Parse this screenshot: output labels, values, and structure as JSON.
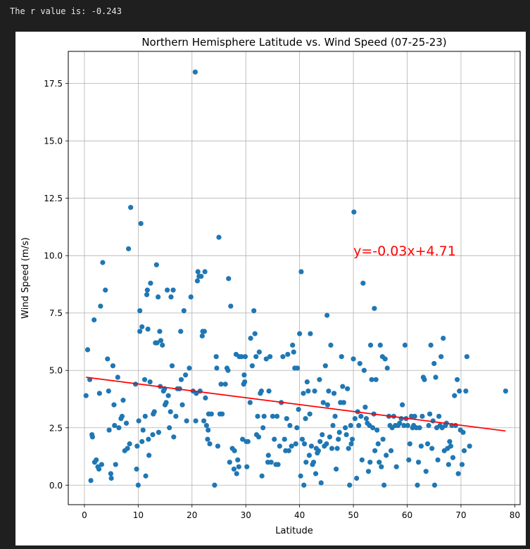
{
  "console": {
    "output_text": "The r value is: -0.243"
  },
  "colors": {
    "points": "#1f77b4",
    "regression": "#ff0000",
    "grid": "#b0b0b0",
    "background": "#1f1f1f"
  },
  "chart_data": {
    "type": "scatter",
    "title": "Northern Hemisphere Latitude vs. Wind Speed (07-25-23)",
    "xlabel": "Latitude",
    "ylabel": "Wind Speed (m/s)",
    "xlim": [
      -3,
      81
    ],
    "ylim": [
      -0.85,
      18.9
    ],
    "xticks": [
      0,
      10,
      20,
      30,
      40,
      50,
      60,
      70,
      80
    ],
    "xtick_labels": [
      "0",
      "10",
      "20",
      "30",
      "40",
      "50",
      "60",
      "70",
      "80"
    ],
    "yticks": [
      0.0,
      2.5,
      5.0,
      7.5,
      10.0,
      12.5,
      15.0,
      17.5
    ],
    "ytick_labels": [
      "0.0",
      "2.5",
      "5.0",
      "7.5",
      "10.0",
      "12.5",
      "15.0",
      "17.5"
    ],
    "grid": true,
    "annotation": {
      "text": "y=-0.03x+4.71",
      "x": 50,
      "y": 10.0
    },
    "regression": {
      "slope": -0.03,
      "intercept": 4.71,
      "x_range": [
        0.3,
        78.3
      ]
    },
    "points": [
      [
        0.3,
        3.9
      ],
      [
        0.6,
        5.9
      ],
      [
        1.0,
        4.6
      ],
      [
        1.2,
        0.2
      ],
      [
        1.4,
        2.2
      ],
      [
        1.5,
        2.1
      ],
      [
        1.8,
        7.2
      ],
      [
        1.9,
        1.0
      ],
      [
        2.2,
        1.1
      ],
      [
        2.5,
        0.8
      ],
      [
        2.7,
        0.7
      ],
      [
        2.8,
        4.0
      ],
      [
        3.0,
        7.8
      ],
      [
        3.2,
        0.9
      ],
      [
        3.4,
        9.7
      ],
      [
        3.9,
        8.5
      ],
      [
        4.3,
        5.5
      ],
      [
        4.5,
        4.1
      ],
      [
        4.6,
        2.4
      ],
      [
        4.9,
        0.5
      ],
      [
        5.0,
        0.3
      ],
      [
        5.3,
        5.2
      ],
      [
        5.5,
        3.5
      ],
      [
        5.6,
        2.6
      ],
      [
        5.8,
        0.9
      ],
      [
        6.2,
        4.7
      ],
      [
        6.4,
        2.5
      ],
      [
        6.8,
        2.9
      ],
      [
        7.0,
        3.0
      ],
      [
        7.2,
        3.7
      ],
      [
        7.5,
        1.5
      ],
      [
        7.8,
        2.7
      ],
      [
        8.0,
        1.6
      ],
      [
        8.2,
        10.3
      ],
      [
        8.4,
        1.8
      ],
      [
        8.6,
        12.1
      ],
      [
        9.5,
        4.4
      ],
      [
        9.7,
        0.7
      ],
      [
        9.8,
        1.7
      ],
      [
        10.0,
        0.0
      ],
      [
        10.1,
        2.8
      ],
      [
        10.3,
        7.6
      ],
      [
        10.3,
        6.7
      ],
      [
        10.5,
        11.4
      ],
      [
        10.7,
        6.9
      ],
      [
        10.7,
        1.9
      ],
      [
        10.9,
        2.4
      ],
      [
        11.2,
        4.6
      ],
      [
        11.3,
        3.0
      ],
      [
        11.4,
        0.4
      ],
      [
        11.6,
        8.3
      ],
      [
        11.7,
        8.5
      ],
      [
        11.8,
        6.8
      ],
      [
        11.9,
        2.0
      ],
      [
        12.0,
        1.3
      ],
      [
        12.2,
        4.5
      ],
      [
        12.3,
        8.8
      ],
      [
        12.7,
        2.2
      ],
      [
        12.8,
        3.1
      ],
      [
        13.0,
        3.2
      ],
      [
        13.2,
        6.2
      ],
      [
        13.4,
        9.6
      ],
      [
        13.5,
        6.2
      ],
      [
        13.7,
        8.2
      ],
      [
        13.8,
        2.3
      ],
      [
        14.0,
        6.7
      ],
      [
        14.1,
        4.3
      ],
      [
        14.2,
        6.3
      ],
      [
        14.5,
        6.1
      ],
      [
        14.7,
        4.1
      ],
      [
        14.9,
        4.2
      ],
      [
        15.0,
        3.5
      ],
      [
        15.2,
        3.6
      ],
      [
        15.4,
        8.5
      ],
      [
        15.6,
        3.9
      ],
      [
        15.8,
        2.5
      ],
      [
        16.0,
        3.2
      ],
      [
        16.1,
        8.2
      ],
      [
        16.3,
        5.2
      ],
      [
        16.5,
        8.5
      ],
      [
        16.6,
        2.1
      ],
      [
        17.0,
        3.0
      ],
      [
        17.3,
        4.2
      ],
      [
        17.7,
        4.2
      ],
      [
        17.9,
        6.7
      ],
      [
        18.0,
        4.6
      ],
      [
        18.2,
        3.5
      ],
      [
        18.5,
        7.6
      ],
      [
        18.8,
        4.8
      ],
      [
        19.0,
        2.8
      ],
      [
        19.5,
        5.1
      ],
      [
        19.8,
        8.2
      ],
      [
        20.2,
        4.1
      ],
      [
        20.6,
        18.0
      ],
      [
        20.7,
        2.8
      ],
      [
        20.8,
        4.0
      ],
      [
        21.0,
        8.9
      ],
      [
        21.1,
        9.3
      ],
      [
        21.3,
        9.1
      ],
      [
        21.5,
        4.1
      ],
      [
        21.7,
        9.1
      ],
      [
        21.9,
        6.5
      ],
      [
        22.0,
        6.7
      ],
      [
        22.2,
        2.8
      ],
      [
        22.3,
        6.7
      ],
      [
        22.4,
        9.3
      ],
      [
        22.5,
        3.8
      ],
      [
        22.7,
        2.6
      ],
      [
        22.9,
        2.0
      ],
      [
        23.0,
        2.4
      ],
      [
        23.1,
        3.1
      ],
      [
        23.3,
        1.8
      ],
      [
        23.6,
        3.1
      ],
      [
        24.2,
        0.0
      ],
      [
        24.5,
        5.6
      ],
      [
        24.6,
        5.1
      ],
      [
        24.8,
        1.7
      ],
      [
        25.0,
        10.8
      ],
      [
        25.2,
        3.1
      ],
      [
        25.4,
        4.4
      ],
      [
        25.6,
        3.1
      ],
      [
        26.2,
        4.4
      ],
      [
        26.5,
        5.1
      ],
      [
        26.7,
        5.0
      ],
      [
        26.8,
        9.0
      ],
      [
        27.0,
        1.0
      ],
      [
        27.2,
        7.8
      ],
      [
        27.5,
        1.6
      ],
      [
        27.8,
        0.7
      ],
      [
        27.9,
        1.5
      ],
      [
        28.2,
        5.7
      ],
      [
        28.3,
        0.5
      ],
      [
        28.5,
        1.1
      ],
      [
        28.7,
        0.8
      ],
      [
        28.8,
        5.6
      ],
      [
        29.2,
        5.6
      ],
      [
        29.4,
        2.0
      ],
      [
        29.6,
        4.4
      ],
      [
        29.7,
        4.8
      ],
      [
        29.8,
        4.5
      ],
      [
        29.9,
        5.6
      ],
      [
        30.1,
        1.9
      ],
      [
        30.2,
        0.8
      ],
      [
        30.4,
        1.9
      ],
      [
        30.8,
        3.6
      ],
      [
        30.9,
        6.4
      ],
      [
        31.2,
        5.2
      ],
      [
        31.5,
        7.6
      ],
      [
        31.7,
        6.6
      ],
      [
        31.9,
        5.6
      ],
      [
        32.0,
        2.2
      ],
      [
        32.2,
        3.0
      ],
      [
        32.4,
        2.1
      ],
      [
        32.5,
        5.8
      ],
      [
        32.7,
        4.0
      ],
      [
        32.9,
        4.1
      ],
      [
        33.0,
        0.4
      ],
      [
        33.2,
        2.5
      ],
      [
        33.4,
        3.0
      ],
      [
        33.8,
        5.5
      ],
      [
        34.1,
        1.0
      ],
      [
        34.2,
        1.3
      ],
      [
        34.3,
        4.1
      ],
      [
        34.5,
        5.6
      ],
      [
        34.7,
        1.0
      ],
      [
        35.0,
        3.0
      ],
      [
        35.3,
        2.0
      ],
      [
        35.6,
        0.9
      ],
      [
        35.8,
        3.0
      ],
      [
        36.0,
        0.9
      ],
      [
        36.3,
        1.7
      ],
      [
        36.6,
        3.6
      ],
      [
        36.9,
        5.6
      ],
      [
        37.2,
        2.0
      ],
      [
        37.4,
        1.5
      ],
      [
        37.6,
        2.9
      ],
      [
        37.8,
        5.7
      ],
      [
        38.0,
        1.5
      ],
      [
        38.2,
        2.6
      ],
      [
        38.5,
        1.7
      ],
      [
        38.7,
        6.1
      ],
      [
        38.9,
        5.8
      ],
      [
        39.1,
        5.1
      ],
      [
        39.3,
        1.8
      ],
      [
        39.5,
        2.5
      ],
      [
        39.6,
        5.1
      ],
      [
        39.8,
        3.3
      ],
      [
        40.0,
        6.6
      ],
      [
        40.2,
        0.4
      ],
      [
        40.3,
        9.3
      ],
      [
        40.5,
        2.0
      ],
      [
        40.7,
        4.0
      ],
      [
        40.8,
        0.0
      ],
      [
        40.9,
        1.8
      ],
      [
        41.1,
        2.9
      ],
      [
        41.2,
        1.0
      ],
      [
        41.4,
        4.5
      ],
      [
        41.6,
        4.1
      ],
      [
        41.8,
        1.3
      ],
      [
        41.9,
        3.1
      ],
      [
        42.0,
        6.6
      ],
      [
        42.2,
        1.7
      ],
      [
        42.4,
        0.9
      ],
      [
        42.6,
        1.0
      ],
      [
        42.8,
        4.1
      ],
      [
        43.0,
        0.5
      ],
      [
        43.1,
        1.6
      ],
      [
        43.3,
        1.4
      ],
      [
        43.5,
        1.5
      ],
      [
        43.7,
        4.6
      ],
      [
        43.8,
        1.9
      ],
      [
        44.0,
        0.1
      ],
      [
        44.2,
        2.2
      ],
      [
        44.4,
        3.6
      ],
      [
        44.6,
        1.7
      ],
      [
        44.8,
        5.2
      ],
      [
        45.0,
        1.8
      ],
      [
        45.1,
        7.4
      ],
      [
        45.2,
        3.5
      ],
      [
        45.4,
        4.1
      ],
      [
        45.6,
        2.1
      ],
      [
        45.8,
        6.1
      ],
      [
        46.0,
        1.6
      ],
      [
        46.2,
        2.6
      ],
      [
        46.4,
        4.0
      ],
      [
        46.6,
        3.0
      ],
      [
        46.8,
        0.7
      ],
      [
        47.0,
        1.6
      ],
      [
        47.2,
        2.0
      ],
      [
        47.4,
        2.3
      ],
      [
        47.6,
        3.6
      ],
      [
        47.8,
        5.6
      ],
      [
        48.0,
        4.3
      ],
      [
        48.2,
        3.6
      ],
      [
        48.5,
        2.5
      ],
      [
        48.7,
        2.2
      ],
      [
        48.9,
        4.2
      ],
      [
        49.1,
        1.6
      ],
      [
        49.3,
        0.0
      ],
      [
        49.5,
        2.6
      ],
      [
        49.6,
        1.8
      ],
      [
        49.8,
        2.0
      ],
      [
        50.0,
        5.5
      ],
      [
        50.1,
        11.9
      ],
      [
        50.3,
        2.9
      ],
      [
        50.6,
        0.3
      ],
      [
        50.8,
        3.2
      ],
      [
        51.0,
        2.6
      ],
      [
        51.2,
        5.3
      ],
      [
        51.4,
        3.0
      ],
      [
        51.6,
        1.1
      ],
      [
        51.8,
        8.8
      ],
      [
        52.0,
        5.0
      ],
      [
        52.2,
        3.4
      ],
      [
        52.4,
        2.9
      ],
      [
        52.6,
        2.7
      ],
      [
        52.8,
        0.6
      ],
      [
        53.0,
        2.6
      ],
      [
        53.1,
        1.0
      ],
      [
        53.2,
        6.1
      ],
      [
        53.4,
        4.6
      ],
      [
        53.6,
        2.5
      ],
      [
        53.8,
        3.1
      ],
      [
        53.9,
        7.7
      ],
      [
        54.0,
        1.5
      ],
      [
        54.2,
        4.6
      ],
      [
        54.4,
        2.4
      ],
      [
        54.6,
        1.8
      ],
      [
        54.8,
        1.0
      ],
      [
        55.0,
        6.1
      ],
      [
        55.2,
        0.8
      ],
      [
        55.4,
        5.6
      ],
      [
        55.5,
        2.0
      ],
      [
        55.7,
        0.0
      ],
      [
        55.9,
        5.5
      ],
      [
        56.1,
        1.3
      ],
      [
        56.3,
        5.1
      ],
      [
        56.6,
        3.0
      ],
      [
        56.8,
        2.6
      ],
      [
        57.0,
        1.5
      ],
      [
        57.2,
        2.5
      ],
      [
        57.5,
        3.0
      ],
      [
        57.8,
        2.6
      ],
      [
        58.0,
        0.8
      ],
      [
        58.3,
        2.6
      ],
      [
        58.6,
        2.7
      ],
      [
        58.9,
        2.9
      ],
      [
        59.1,
        3.5
      ],
      [
        59.4,
        2.6
      ],
      [
        59.6,
        6.1
      ],
      [
        59.8,
        2.9
      ],
      [
        60.1,
        2.6
      ],
      [
        60.3,
        1.1
      ],
      [
        60.5,
        1.8
      ],
      [
        60.8,
        3.0
      ],
      [
        61.0,
        2.5
      ],
      [
        61.2,
        2.6
      ],
      [
        61.4,
        3.0
      ],
      [
        61.7,
        2.5
      ],
      [
        61.9,
        0.0
      ],
      [
        62.1,
        1.0
      ],
      [
        62.3,
        2.5
      ],
      [
        62.6,
        1.7
      ],
      [
        62.8,
        3.0
      ],
      [
        63.0,
        4.7
      ],
      [
        63.2,
        4.6
      ],
      [
        63.5,
        0.6
      ],
      [
        63.8,
        1.8
      ],
      [
        64.0,
        2.6
      ],
      [
        64.2,
        3.1
      ],
      [
        64.4,
        6.1
      ],
      [
        64.6,
        1.6
      ],
      [
        64.8,
        2.8
      ],
      [
        65.0,
        5.3
      ],
      [
        65.1,
        0.0
      ],
      [
        65.3,
        4.7
      ],
      [
        65.5,
        2.5
      ],
      [
        65.7,
        1.1
      ],
      [
        65.9,
        3.0
      ],
      [
        66.1,
        2.6
      ],
      [
        66.3,
        5.6
      ],
      [
        66.5,
        2.5
      ],
      [
        66.7,
        6.4
      ],
      [
        66.9,
        1.5
      ],
      [
        67.1,
        2.6
      ],
      [
        67.3,
        2.7
      ],
      [
        67.5,
        1.6
      ],
      [
        67.7,
        0.9
      ],
      [
        67.9,
        1.9
      ],
      [
        68.1,
        1.7
      ],
      [
        68.3,
        2.6
      ],
      [
        68.5,
        1.2
      ],
      [
        68.8,
        3.9
      ],
      [
        69.0,
        2.6
      ],
      [
        69.3,
        4.6
      ],
      [
        69.5,
        0.5
      ],
      [
        69.7,
        4.1
      ],
      [
        69.9,
        2.4
      ],
      [
        70.2,
        0.9
      ],
      [
        70.4,
        2.3
      ],
      [
        70.6,
        1.5
      ],
      [
        70.9,
        4.1
      ],
      [
        71.1,
        5.6
      ],
      [
        71.6,
        1.7
      ],
      [
        78.3,
        4.1
      ]
    ]
  }
}
